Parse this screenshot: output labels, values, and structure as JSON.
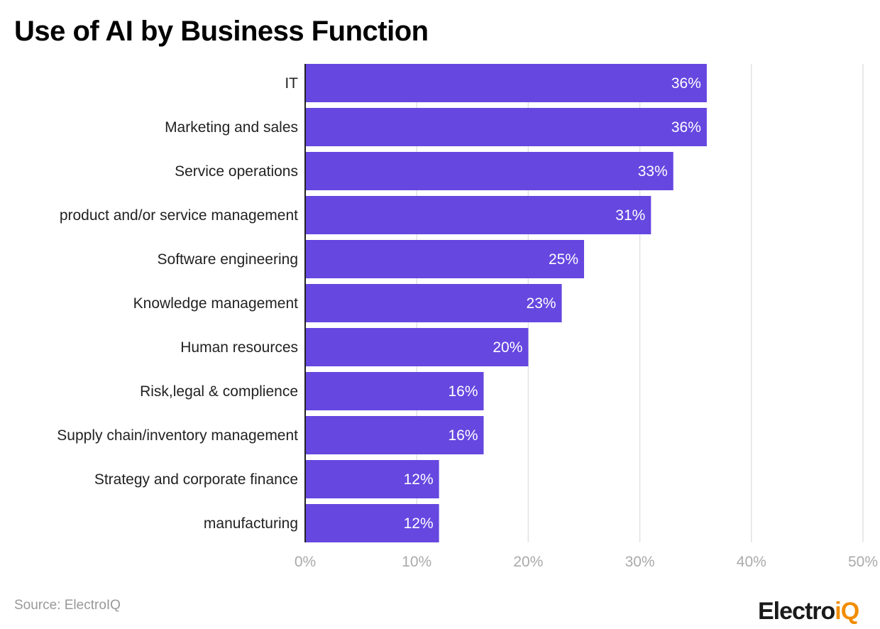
{
  "chart_data": {
    "type": "bar",
    "orientation": "horizontal",
    "title": "Use of AI by Business Function",
    "categories": [
      "IT",
      "Marketing and sales",
      "Service operations",
      "product and/or service management",
      "Software engineering",
      "Knowledge management",
      "Human resources",
      "Risk,legal & complience",
      "Supply chain/inventory management",
      "Strategy and corporate finance",
      "manufacturing"
    ],
    "values": [
      36,
      36,
      33,
      31,
      25,
      23,
      20,
      16,
      16,
      12,
      12
    ],
    "value_labels": [
      "36%",
      "36%",
      "33%",
      "31%",
      "25%",
      "23%",
      "20%",
      "16%",
      "16%",
      "12%",
      "12%"
    ],
    "xlim": [
      0,
      50
    ],
    "xticks": [
      0,
      10,
      20,
      30,
      40,
      50
    ],
    "xtick_labels": [
      "0%",
      "10%",
      "20%",
      "30%",
      "40%",
      "50%"
    ],
    "grid": true,
    "bar_color": "#6647e0"
  },
  "source": "Source: ElectroIQ",
  "logo": {
    "part1": "Electro",
    "part2": "iQ"
  }
}
